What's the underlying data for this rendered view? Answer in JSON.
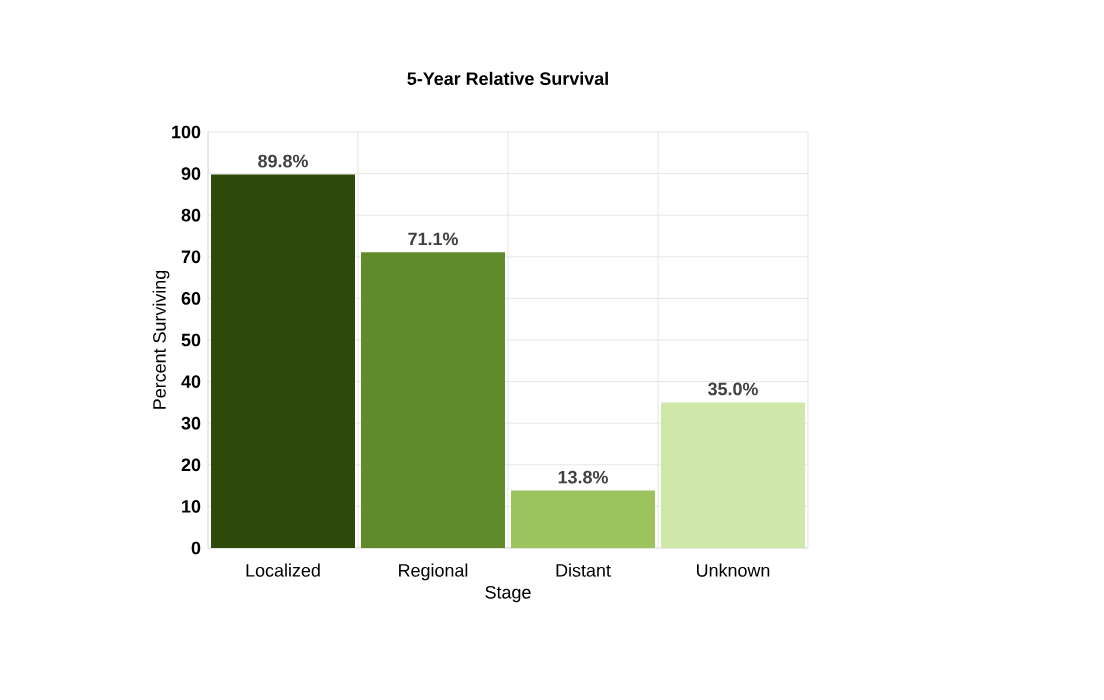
{
  "chart_data": {
    "type": "bar",
    "title": "5-Year Relative Survival",
    "xlabel": "Stage",
    "ylabel": "Percent Surviving",
    "categories": [
      "Localized",
      "Regional",
      "Distant",
      "Unknown"
    ],
    "values": [
      89.8,
      71.1,
      13.8,
      35.0
    ],
    "colors": [
      "#2e4a0b",
      "#5f8b2b",
      "#9cc45e",
      "#cfe8a9"
    ],
    "value_labels": [
      "89.8%",
      "71.1%",
      "13.8%",
      "35.0%"
    ],
    "ylim": [
      0,
      100
    ],
    "yticks": [
      0,
      10,
      20,
      30,
      40,
      50,
      60,
      70,
      80,
      90,
      100
    ],
    "grid": true
  }
}
